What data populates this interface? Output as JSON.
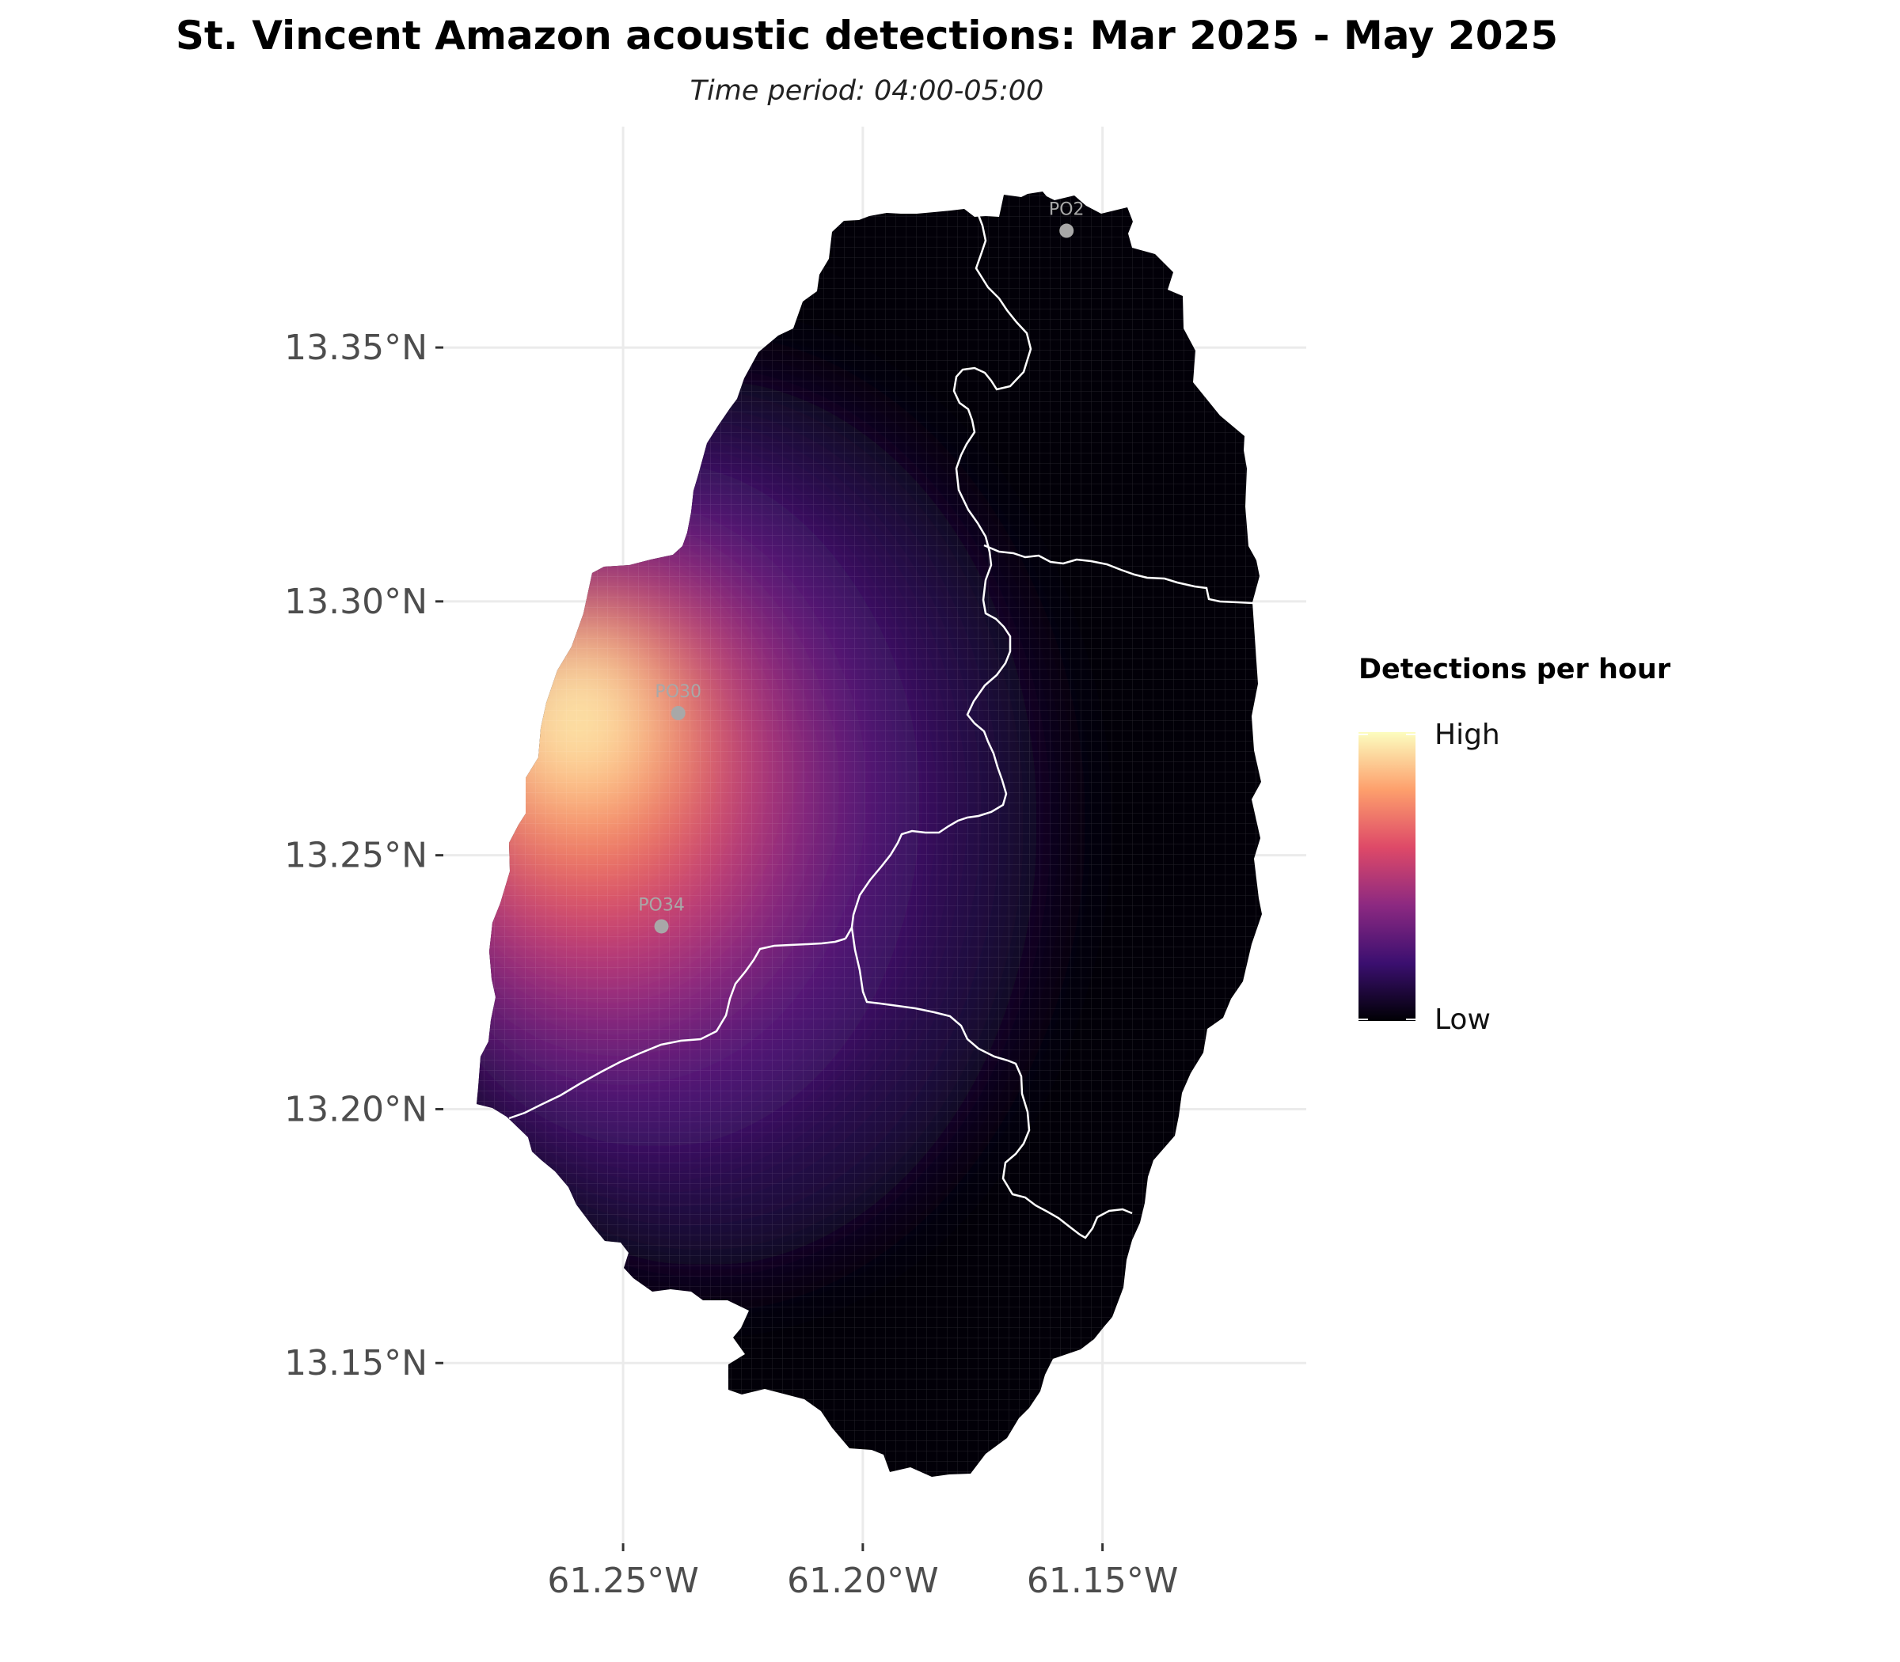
{
  "title": "St. Vincent Amazon acoustic detections: Mar 2025 - May 2025",
  "subtitle": "Time period: 04:00-05:00",
  "axes": {
    "x_ticks": [
      {
        "value": -61.25,
        "label": "61.25°W"
      },
      {
        "value": -61.2,
        "label": "61.20°W"
      },
      {
        "value": -61.15,
        "label": "61.15°W"
      }
    ],
    "y_ticks": [
      {
        "value": 13.35,
        "label": "13.35°N"
      },
      {
        "value": 13.3,
        "label": "13.30°N"
      },
      {
        "value": 13.25,
        "label": "13.25°N"
      },
      {
        "value": 13.2,
        "label": "13.20°N"
      },
      {
        "value": 13.15,
        "label": "13.15°N"
      }
    ],
    "grid": true
  },
  "legend": {
    "title": "Detections per hour",
    "high_label": "High",
    "low_label": "Low",
    "colors": [
      "#fcfdbf",
      "#fd9f6c",
      "#de4968",
      "#8c2981",
      "#3b0f70",
      "#000004"
    ],
    "position": "right"
  },
  "sites": [
    {
      "label": "PO2",
      "lon": -61.1575,
      "lat": 13.373
    },
    {
      "label": "PO30",
      "lon": -61.2385,
      "lat": 13.278
    },
    {
      "label": "PO34",
      "lon": -61.242,
      "lat": 13.236
    }
  ],
  "chart_data": {
    "type": "heatmap",
    "title": "St. Vincent Amazon acoustic detections: Mar 2025 - May 2025",
    "subtitle": "Time period: 04:00-05:00",
    "xlabel": "",
    "ylabel": "",
    "xlim": [
      -61.2875,
      -61.1075
    ],
    "ylim": [
      13.1145,
      13.3935
    ],
    "scale": "Detections per hour (Low to High, magma palette)",
    "hotspot": {
      "lon": -61.238,
      "lat": 13.278
    },
    "sites": [
      "PO2",
      "PO30",
      "PO34"
    ]
  }
}
